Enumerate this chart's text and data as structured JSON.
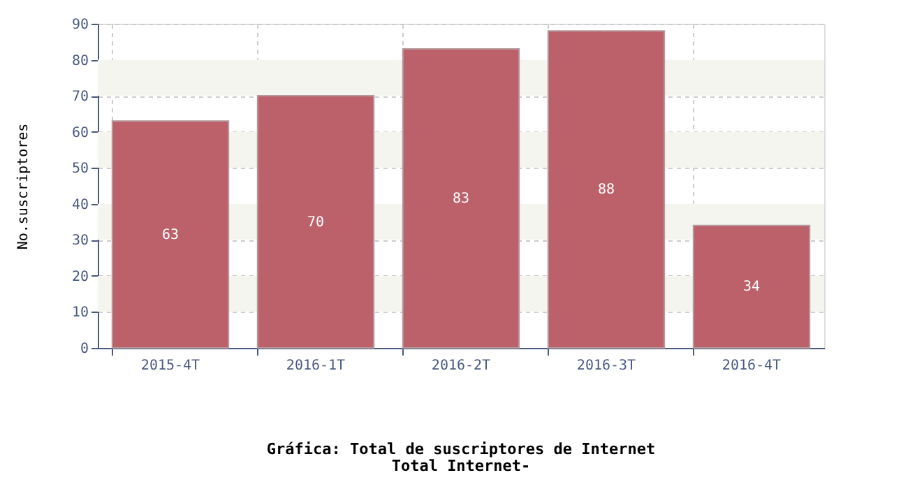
{
  "chart_data": {
    "type": "bar",
    "title": "Gráfica: Total de suscriptores de Internet",
    "subtitle": "Total Internet-",
    "ylabel": "No.suscriptores",
    "categories": [
      "2015-4T",
      "2016-1T",
      "2016-2T",
      "2016-3T",
      "2016-4T"
    ],
    "values": [
      63,
      70,
      83,
      88,
      34
    ],
    "color": "#bc616a",
    "ylim": [
      0,
      90
    ],
    "yticks": [
      0,
      10,
      20,
      30,
      40,
      50,
      60,
      70,
      80,
      90
    ],
    "grid": true,
    "data_labels": true,
    "bands": [
      {
        "axis": "y",
        "from": 10,
        "to": 20,
        "color": "#f5f5f0"
      },
      {
        "axis": "y",
        "from": 30,
        "to": 40,
        "color": "#f5f5f0"
      },
      {
        "axis": "y",
        "from": 50,
        "to": 60,
        "color": "#f5f5f0"
      },
      {
        "axis": "y",
        "from": 70,
        "to": 80,
        "color": "#f5f5f0"
      }
    ]
  }
}
